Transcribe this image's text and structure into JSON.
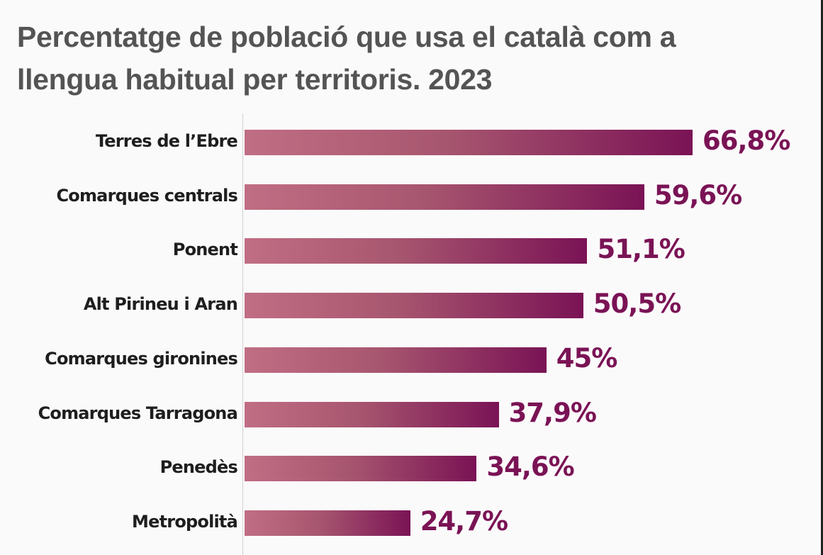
{
  "chart_data": {
    "type": "bar",
    "orientation": "horizontal",
    "title": "Percentatge de població que usa el català com a llengua habitual per territoris. 2023",
    "title_lines": [
      "Percentatge de població que usa el català com a",
      "llengua habitual per territoris. 2023"
    ],
    "categories": [
      "Terres de l’Ebre",
      "Comarques centrals",
      "Ponent",
      "Alt Pirineu i Aran",
      "Comarques gironines",
      "Comarques Tarragona",
      "Penedès",
      "Metropolità"
    ],
    "values": [
      66.8,
      59.6,
      51.1,
      50.5,
      45,
      37.9,
      34.6,
      24.7
    ],
    "value_labels": [
      "66,8%",
      "59,6%",
      "51,1%",
      "50,5%",
      "45%",
      "37,9%",
      "34,6%",
      "24,7%"
    ],
    "unit": "%",
    "xlim": [
      0,
      100
    ],
    "grid": false,
    "legend": "none",
    "colors": {
      "bar_start": "#c06e84",
      "bar_end": "#7a1355",
      "value_text": "#7a1355",
      "title_text": "#545454"
    }
  }
}
